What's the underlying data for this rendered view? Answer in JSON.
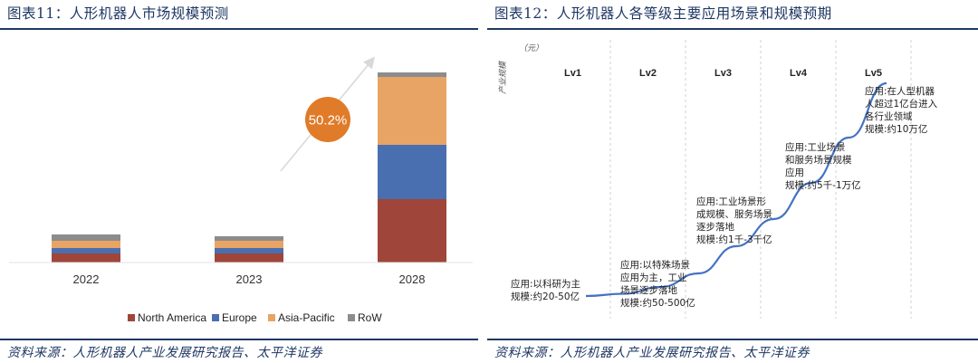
{
  "left": {
    "title": "图表11：人形机器人市场规模预测",
    "source": "资料来源：人形机器人产业发展研究报告、太平洋证券",
    "growth_label": "50.2%"
  },
  "right": {
    "title": "图表12：人形机器人各等级主要应用场景和规模预期",
    "source": "资料来源：人形机器人产业发展研究报告、太平洋证券"
  },
  "chart_data": [
    {
      "type": "bar",
      "stacked": true,
      "categories": [
        "2022",
        "2023",
        "2028"
      ],
      "series": [
        {
          "name": "North America",
          "color": "#a0453a",
          "values": [
            0.1,
            0.1,
            0.7
          ]
        },
        {
          "name": "Europe",
          "color": "#4a6fb0",
          "values": [
            0.06,
            0.06,
            0.6
          ]
        },
        {
          "name": "Asia-Pacific",
          "color": "#e8a464",
          "values": [
            0.08,
            0.08,
            0.75
          ]
        },
        {
          "name": "RoW",
          "color": "#8c8c8c",
          "values": [
            0.07,
            0.05,
            0.05
          ]
        }
      ],
      "ylim": [
        0,
        2.2
      ],
      "legend": "bottom",
      "annotation": "50.2%"
    },
    {
      "type": "line",
      "ylabel": "产业规模",
      "yunit": "（元）",
      "levels": [
        "Lv1",
        "Lv2",
        "Lv3",
        "Lv4",
        "Lv5"
      ],
      "x": [
        0.0,
        0.5,
        1.0,
        1.5,
        2.0,
        2.5,
        3.0,
        3.5,
        4.0
      ],
      "y": [
        0.02,
        0.03,
        0.06,
        0.12,
        0.24,
        0.36,
        0.52,
        0.72,
        0.96
      ],
      "annotations": [
        {
          "lines": [
            "应用:以科研为主",
            "规模:约20-50亿"
          ]
        },
        {
          "lines": [
            "应用:以特殊场景",
            "应用为主，工业",
            "场景逐步落地",
            "规模:约50-500亿"
          ]
        },
        {
          "lines": [
            "应用:工业场景形",
            "成规模、服务场景",
            "逐步落地",
            "规模:约1千-3千亿"
          ]
        },
        {
          "lines": [
            "应用:工业场景",
            "和服务场景规模",
            "应用",
            "规模:约5千-1万亿"
          ]
        },
        {
          "lines": [
            "应用:在人型机器",
            "人超过1亿台进入",
            "各行业领域",
            "规模:约10万亿"
          ]
        }
      ],
      "grid": "vertical-dashed"
    }
  ]
}
